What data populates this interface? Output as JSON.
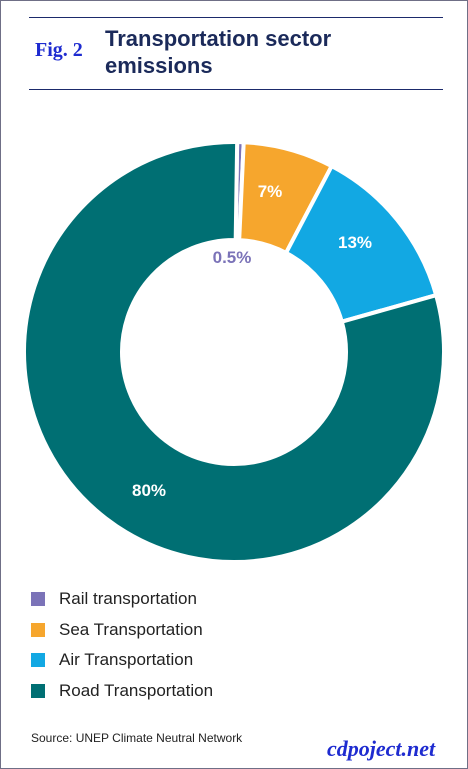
{
  "figure": {
    "label": "Fig. 2"
  },
  "source": "Source: UNEP Climate Neutral Network",
  "watermark": "cdpoject.net",
  "chart_data": {
    "type": "pie",
    "variant": "donut",
    "title": "Transportation sector emissions",
    "categories": [
      "Rail transportation",
      "Sea Transportation",
      "Air Transportation",
      "Road Transportation"
    ],
    "values": [
      0.5,
      7,
      13,
      80
    ],
    "data_labels": [
      "0.5%",
      "7%",
      "13%",
      "80%"
    ],
    "colors": [
      "#7b73b8",
      "#f6a62d",
      "#12a8e3",
      "#006f73"
    ],
    "legend_position": "bottom-left"
  }
}
